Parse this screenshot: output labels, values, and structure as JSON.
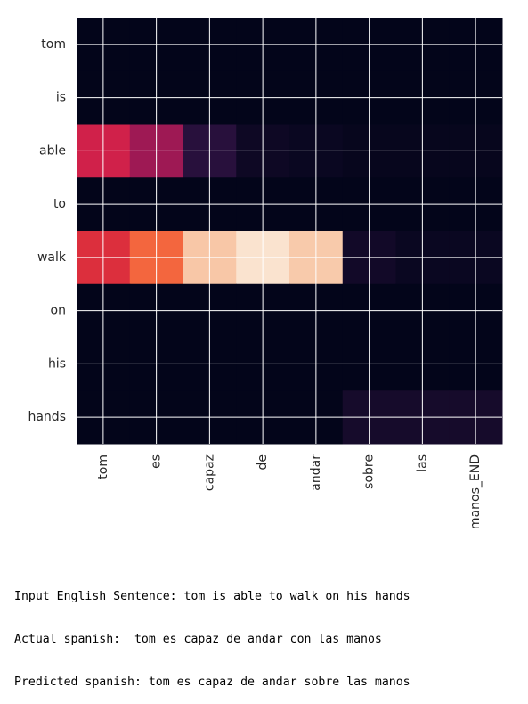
{
  "chart_data": {
    "type": "heatmap",
    "title": "",
    "xlabel": "",
    "ylabel": "",
    "x_labels": [
      "tom",
      "es",
      "capaz",
      "de",
      "andar",
      "sobre",
      "las",
      "manos_END"
    ],
    "y_labels": [
      "tom",
      "is",
      "able",
      "to",
      "walk",
      "on",
      "his",
      "hands"
    ],
    "values": [
      [
        0.0,
        0.0,
        0.0,
        0.0,
        0.0,
        0.0,
        0.0,
        0.0
      ],
      [
        0.0,
        0.0,
        0.0,
        0.0,
        0.0,
        0.0,
        0.0,
        0.0
      ],
      [
        0.42,
        0.32,
        0.1,
        0.03,
        0.02,
        0.01,
        0.01,
        0.01
      ],
      [
        0.0,
        0.0,
        0.0,
        0.0,
        0.0,
        0.0,
        0.0,
        0.0
      ],
      [
        0.47,
        0.62,
        0.85,
        0.96,
        0.86,
        0.04,
        0.02,
        0.02
      ],
      [
        0.0,
        0.0,
        0.0,
        0.0,
        0.0,
        0.0,
        0.0,
        0.0
      ],
      [
        0.0,
        0.0,
        0.0,
        0.0,
        0.0,
        0.0,
        0.0,
        0.0
      ],
      [
        0.0,
        0.0,
        0.0,
        0.0,
        0.0,
        0.05,
        0.05,
        0.05
      ]
    ],
    "vmin": 0,
    "vmax": 1,
    "colormap": "rocket",
    "grid": true,
    "grid_color": "#ffffff",
    "colorbar": false
  },
  "output": {
    "lines": [
      "Input English Sentence: tom is able to walk on his hands",
      "Actual spanish:  tom es capaz de andar con las manos",
      "Predicted spanish: tom es capaz de andar sobre las manos"
    ]
  }
}
